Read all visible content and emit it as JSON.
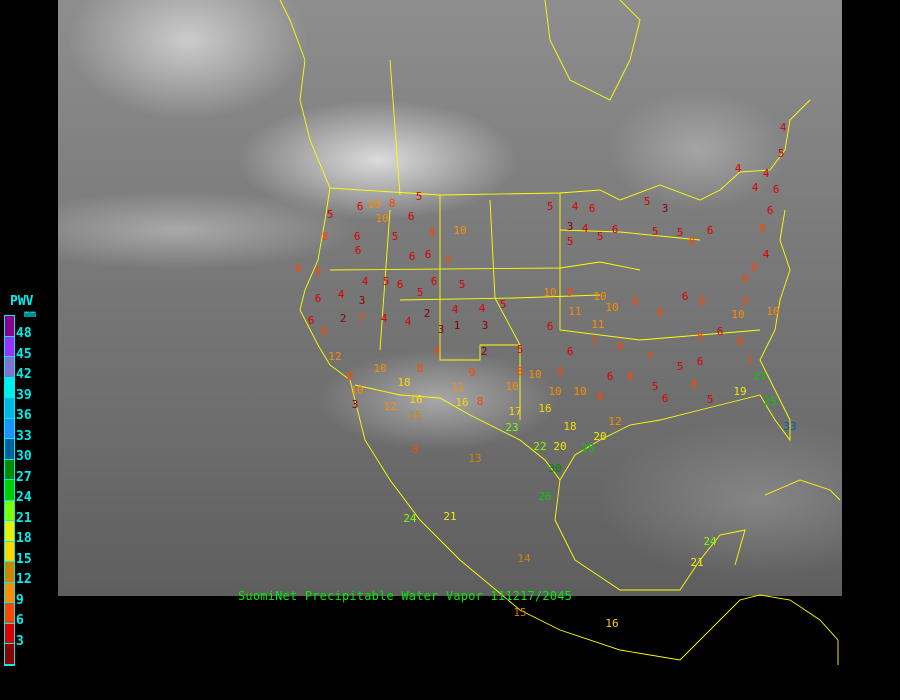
{
  "title": "SuomiNet Precipitable Water Vapor 111217/2045",
  "legend": {
    "title": "PWV",
    "unit": "mm",
    "ticks": [
      "48",
      "45",
      "42",
      "39",
      "36",
      "33",
      "30",
      "27",
      "24",
      "21",
      "18",
      "15",
      "12",
      "9",
      "6",
      "3"
    ],
    "colors": [
      "#8b008b",
      "#9b30ff",
      "#8470d0",
      "#00eeee",
      "#00b8e8",
      "#1e90ff",
      "#005f9f",
      "#008b00",
      "#00cd00",
      "#7fff00",
      "#eeee00",
      "#ffd700",
      "#cd8500",
      "#ff8c00",
      "#ff4500",
      "#dd0000",
      "#8b0000"
    ]
  },
  "colors": {
    "boundaries": "#ffff00",
    "title": "#00ee00",
    "legend_text": "#00eeee"
  },
  "stations": [
    4,
    5,
    4,
    4,
    4,
    6,
    6,
    9,
    4,
    8,
    5,
    8,
    10,
    10,
    6,
    5,
    8,
    6,
    6,
    5,
    6,
    8,
    10,
    6,
    6,
    9,
    5,
    6,
    5,
    6,
    5,
    4,
    4,
    9,
    9,
    6,
    6,
    8,
    2,
    3,
    7,
    4,
    4,
    2,
    4,
    1,
    3,
    3,
    4,
    5,
    2,
    9,
    11,
    16,
    8,
    10,
    5,
    4,
    6,
    3,
    4,
    5,
    5,
    6,
    5,
    3,
    5,
    5,
    8,
    6,
    10,
    9,
    10,
    10,
    11,
    6,
    11,
    8,
    8,
    6,
    8,
    9,
    10,
    10,
    8,
    6,
    8,
    7,
    6,
    5,
    7,
    9,
    7,
    6,
    9,
    10,
    8,
    6,
    8,
    5,
    6,
    8,
    5,
    19,
    27,
    25,
    33,
    10,
    10,
    8,
    17,
    16,
    18,
    22,
    20,
    25,
    20,
    12,
    23,
    30,
    26,
    8,
    13,
    18,
    16,
    12,
    3,
    8,
    12,
    10,
    10,
    8,
    9,
    15,
    21,
    24,
    14,
    15,
    16,
    21,
    24,
    8,
    5
  ]
}
